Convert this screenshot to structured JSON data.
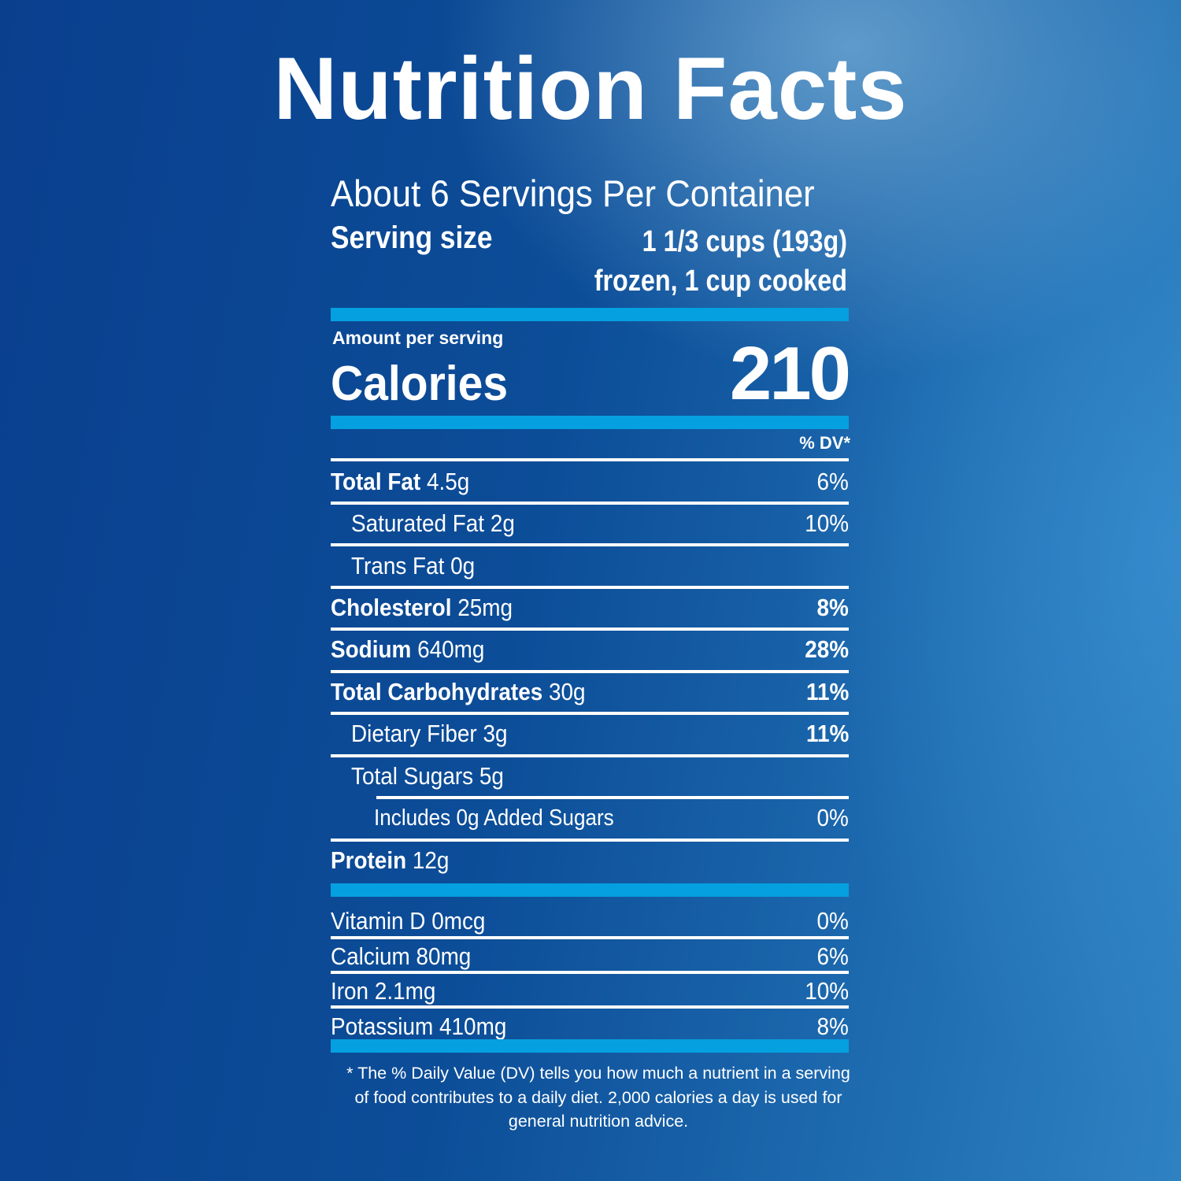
{
  "title": "Nutrition Facts",
  "servings_per_container": "About 6 Servings Per Container",
  "serving_size": {
    "label": "Serving size",
    "value_line1": "1 1/3 cups (193g)",
    "value_line2": "frozen, 1 cup cooked"
  },
  "amount_per_serving": "Amount per serving",
  "calories": {
    "label": "Calories",
    "value": "210"
  },
  "dv_header": "% DV*",
  "nutrients": [
    {
      "name": "Total Fat",
      "amount": "4.5g",
      "dv": "6%"
    },
    {
      "name": "Saturated Fat",
      "amount": "2g",
      "dv": "10%"
    },
    {
      "name": "Trans Fat",
      "amount": "0g",
      "dv": ""
    },
    {
      "name": "Cholesterol",
      "amount": "25mg",
      "dv": "8%"
    },
    {
      "name": "Sodium",
      "amount": "640mg",
      "dv": "28%"
    },
    {
      "name": "Total Carbohydrates",
      "amount": "30g",
      "dv": "11%"
    },
    {
      "name": "Dietary Fiber",
      "amount": "3g",
      "dv": "11%"
    },
    {
      "name": "Total Sugars",
      "amount": "5g",
      "dv": ""
    },
    {
      "name": "Includes 0g Added Sugars",
      "amount": "",
      "dv": "0%"
    },
    {
      "name": "Protein",
      "amount": "12g",
      "dv": ""
    }
  ],
  "vitamins": [
    {
      "name": "Vitamin D",
      "amount": "0mcg",
      "dv": "0%"
    },
    {
      "name": "Calcium",
      "amount": "80mg",
      "dv": "6%"
    },
    {
      "name": "Iron",
      "amount": "2.1mg",
      "dv": "10%"
    },
    {
      "name": "Potassium",
      "amount": "410mg",
      "dv": "8%"
    }
  ],
  "footnote": "* The % Daily Value (DV) tells you how much a nutrient in a serving of food contributes to a daily diet. 2,000 calories a day is used for general nutrition advice.",
  "colors": {
    "bar": "#05a0df",
    "background": "#0c4d98"
  }
}
